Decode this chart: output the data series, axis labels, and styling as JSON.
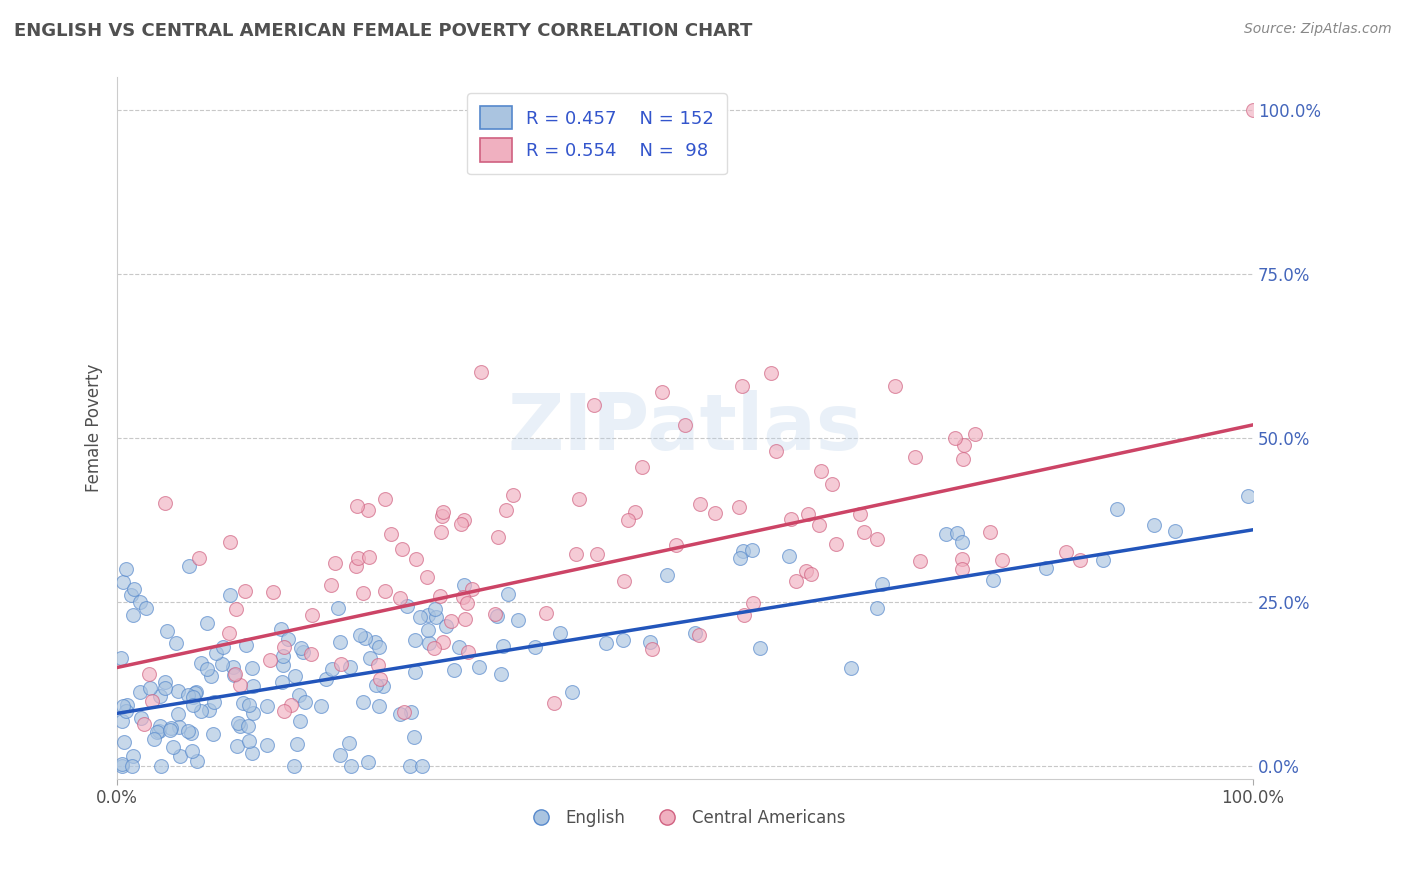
{
  "title": "ENGLISH VS CENTRAL AMERICAN FEMALE POVERTY CORRELATION CHART",
  "source": "Source: ZipAtlas.com",
  "ylabel": "Female Poverty",
  "xlabel_english": "English",
  "xlabel_central": "Central Americans",
  "xlim": [
    0.0,
    1.0
  ],
  "ylim": [
    -0.02,
    1.05
  ],
  "ytick_vals": [
    0.0,
    0.25,
    0.5,
    0.75,
    1.0
  ],
  "english_R": 0.457,
  "english_N": 152,
  "central_R": 0.554,
  "central_N": 98,
  "english_scatter_color": "#aac4e0",
  "english_edge_color": "#5588cc",
  "central_scatter_color": "#f0b0c0",
  "central_edge_color": "#d06080",
  "trend_line_english": "#2255bb",
  "trend_line_central": "#cc4466",
  "background_color": "#ffffff",
  "grid_color": "#c8c8c8",
  "watermark": "ZIPatlas",
  "title_color": "#505050",
  "axis_label_color": "#4466bb",
  "legend_text_color": "#3355cc"
}
